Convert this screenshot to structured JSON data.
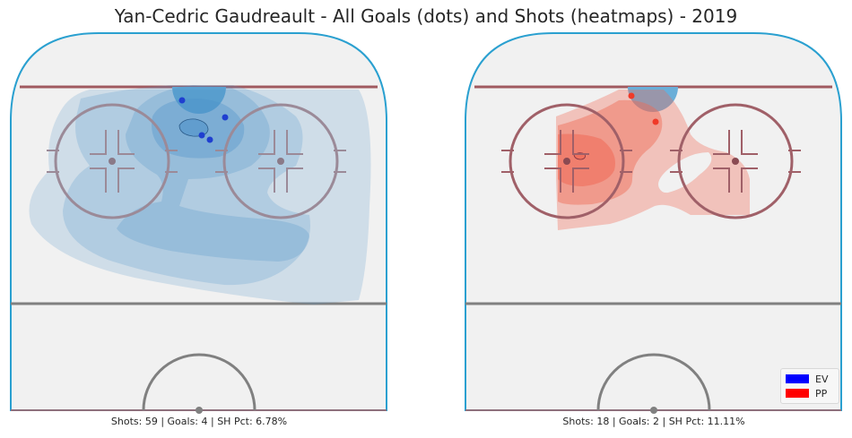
{
  "chart_data": {
    "type": "heatmap",
    "title": "Yan-Cedric Gaudreault - All Goals (dots) and Shots (heatmaps) - 2019",
    "legend": {
      "placement": "bottom-right",
      "entries": [
        {
          "label": "EV",
          "color": "#0000ff"
        },
        {
          "label": "PP",
          "color": "#ff0000"
        }
      ]
    },
    "panels": [
      {
        "strength": "EV",
        "stats": "Shots: 59 | Goals: 4 | SH Pct: 6.78%",
        "shots": 59,
        "goals": 4,
        "sh_pct": 6.78,
        "heat_color": "#4a90c8",
        "goal_color": "#1f3fd0"
      },
      {
        "strength": "PP",
        "stats": "Shots: 18 | Goals: 2 | SH Pct: 11.11%",
        "shots": 18,
        "goals": 2,
        "sh_pct": 11.11,
        "heat_color": "#f06a55",
        "goal_color": "#f03a28"
      }
    ]
  }
}
